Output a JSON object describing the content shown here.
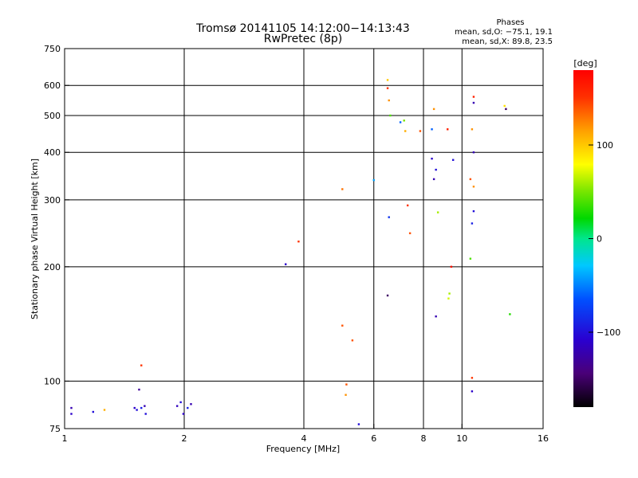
{
  "chart_data": {
    "type": "scatter",
    "title": "Tromsø 20141105 14:12:00−14:13:43",
    "subtitle": "RwPretec (8p)",
    "xlabel": "Frequency [MHz]",
    "ylabel": "Stationary phase Virtual Height [km]",
    "x_scale": "log",
    "y_scale": "log",
    "xlim": [
      1,
      16
    ],
    "ylim": [
      75,
      750
    ],
    "x_ticks": [
      1,
      2,
      4,
      6,
      8,
      10,
      16
    ],
    "x_tick_labels": [
      "1",
      "2",
      "4",
      "6",
      "8",
      "10",
      "16"
    ],
    "x_gridlines": [
      2,
      4,
      6,
      8,
      10
    ],
    "y_ticks": [
      75,
      100,
      200,
      300,
      400,
      500,
      600,
      750
    ],
    "y_tick_labels": [
      "75",
      "100",
      "200",
      "300",
      "400",
      "500",
      "600",
      "750"
    ],
    "y_gridlines": [
      100,
      200,
      300,
      400,
      500,
      600
    ],
    "grid": true,
    "stats": {
      "heading": "Phases",
      "line_o": "mean, sd,O: −75.1, 19.1",
      "line_x": "mean, sd,X:  89.8, 23.5"
    },
    "colorbar": {
      "label": "[deg]",
      "range": [
        -180,
        180
      ],
      "ticks": [
        100,
        0,
        -100
      ],
      "tick_labels": [
        "100",
        "0",
        "−100"
      ]
    },
    "points": [
      [
        1.04,
        85,
        -120
      ],
      [
        1.04,
        82,
        -110
      ],
      [
        1.18,
        83,
        -100
      ],
      [
        1.26,
        84,
        110
      ],
      [
        1.5,
        85,
        -110
      ],
      [
        1.52,
        84,
        -100
      ],
      [
        1.54,
        95,
        -130
      ],
      [
        1.56,
        85,
        -90
      ],
      [
        1.59,
        86,
        -120
      ],
      [
        1.6,
        82,
        -100
      ],
      [
        1.92,
        86,
        -115
      ],
      [
        1.96,
        88,
        -100
      ],
      [
        1.99,
        82,
        -110
      ],
      [
        2.04,
        85,
        -90
      ],
      [
        2.08,
        87,
        -120
      ],
      [
        1.56,
        110,
        150
      ],
      [
        3.6,
        203,
        -110
      ],
      [
        3.88,
        233,
        150
      ],
      [
        5.0,
        320,
        130
      ],
      [
        5.0,
        140,
        140
      ],
      [
        5.3,
        128,
        140
      ],
      [
        5.5,
        77,
        -100
      ],
      [
        5.12,
        98,
        140
      ],
      [
        5.1,
        92,
        120
      ],
      [
        6.5,
        620,
        100
      ],
      [
        6.5,
        590,
        150
      ],
      [
        6.55,
        548,
        120
      ],
      [
        6.6,
        500,
        40
      ],
      [
        6.0,
        338,
        -40
      ],
      [
        6.5,
        168,
        -150
      ],
      [
        6.55,
        270,
        -80
      ],
      [
        7.0,
        480,
        -60
      ],
      [
        7.15,
        485,
        50
      ],
      [
        7.2,
        455,
        110
      ],
      [
        7.3,
        290,
        150
      ],
      [
        7.4,
        245,
        140
      ],
      [
        7.85,
        455,
        140
      ],
      [
        8.4,
        385,
        -110
      ],
      [
        8.5,
        340,
        -120
      ],
      [
        8.6,
        360,
        -100
      ],
      [
        8.6,
        148,
        -120
      ],
      [
        8.5,
        520,
        120
      ],
      [
        8.7,
        278,
        60
      ],
      [
        8.4,
        460,
        -60
      ],
      [
        9.2,
        460,
        160
      ],
      [
        9.5,
        382,
        -100
      ],
      [
        9.4,
        200,
        170
      ],
      [
        9.3,
        170,
        60
      ],
      [
        9.25,
        165,
        70
      ],
      [
        10.7,
        560,
        160
      ],
      [
        10.7,
        540,
        -120
      ],
      [
        10.6,
        460,
        120
      ],
      [
        10.7,
        400,
        -120
      ],
      [
        10.5,
        340,
        140
      ],
      [
        10.7,
        325,
        120
      ],
      [
        10.7,
        280,
        -100
      ],
      [
        10.6,
        260,
        -90
      ],
      [
        10.5,
        210,
        40
      ],
      [
        10.6,
        102,
        150
      ],
      [
        10.6,
        94,
        -110
      ],
      [
        12.8,
        530,
        90
      ],
      [
        12.9,
        520,
        -150
      ],
      [
        13.2,
        150,
        30
      ]
    ]
  }
}
